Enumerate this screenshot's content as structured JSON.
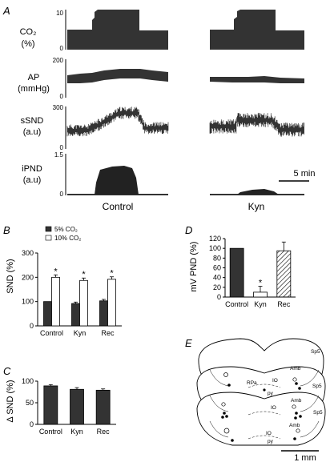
{
  "panels": {
    "a": "A",
    "b": "B",
    "c": "C",
    "d": "D",
    "e": "E"
  },
  "panel_a": {
    "traces": [
      {
        "id": "co2",
        "label_line1": "CO₂",
        "label_line2": "(%)",
        "ymax_label": "10",
        "ymin_label": "0"
      },
      {
        "id": "ap",
        "label_line1": "AP",
        "label_line2": "(mmHg)",
        "ymax_label": "200",
        "ymin_label": "0"
      },
      {
        "id": "ssnd",
        "label_line1": "sSND",
        "label_line2": "(a.u)",
        "ymax_label": "300",
        "ymin_label": "0"
      },
      {
        "id": "ipnd",
        "label_line1": "iPND",
        "label_line2": "(a.u)",
        "ymax_label": "1.5",
        "ymin_label": "0"
      }
    ],
    "conditions": [
      "Control",
      "Kyn"
    ],
    "scale_bar": "5 min"
  },
  "chart_data": [
    {
      "type": "bar",
      "panel": "B",
      "ylabel": "SND (%)",
      "ylim": [
        0,
        300
      ],
      "yticks": [
        "0",
        "100",
        "200",
        "300"
      ],
      "categories": [
        "Control",
        "Kyn",
        "Rec"
      ],
      "series": [
        {
          "name": "5% CO₂",
          "values": [
            100,
            92,
            103
          ],
          "errors": [
            0,
            6,
            6
          ],
          "color": "#333333"
        },
        {
          "name": "10% CO₂",
          "values": [
            200,
            187,
            192
          ],
          "errors": [
            10,
            10,
            10
          ],
          "color": "#ffffff"
        }
      ],
      "significance": [
        "*",
        "*",
        "*"
      ],
      "legend": "top-left"
    },
    {
      "type": "bar",
      "panel": "C",
      "ylabel": "Δ SND (%)",
      "ylim": [
        0,
        100
      ],
      "yticks": [
        "0",
        "50",
        "100"
      ],
      "categories": [
        "Control",
        "Kyn",
        "Rec"
      ],
      "values": [
        89,
        81,
        79
      ],
      "errors": [
        3,
        4,
        3
      ],
      "color": "#333333"
    },
    {
      "type": "bar",
      "panel": "D",
      "ylabel": "mV PND (%)",
      "ylim": [
        0,
        120
      ],
      "yticks": [
        "0",
        "20",
        "40",
        "60",
        "80",
        "100",
        "120"
      ],
      "categories": [
        "Control",
        "Kyn",
        "Rec"
      ],
      "values": [
        100,
        10,
        95
      ],
      "errors": [
        0,
        12,
        18
      ],
      "fills": [
        "solid",
        "open",
        "hatched"
      ],
      "significance": [
        "",
        "*",
        ""
      ]
    }
  ],
  "panel_e": {
    "labels": {
      "sp5_1": "Sp5",
      "sp5_2": "Sp5",
      "sp5_3": "Sp5",
      "amb_1": "Amb",
      "amb_2": "Amb",
      "amb_3": "Amb",
      "rpa": "RPa",
      "io_1": "IO",
      "io_2": "IO",
      "io_3": "IO",
      "py_1": "py",
      "py_2": "py"
    },
    "scale_bar": "1 mm"
  }
}
